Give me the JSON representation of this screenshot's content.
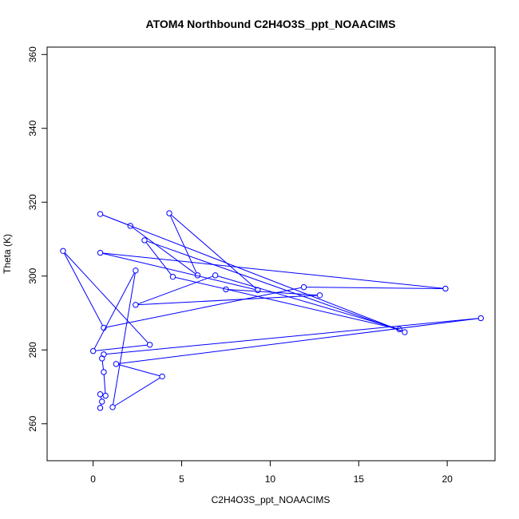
{
  "chart_data": {
    "type": "line",
    "title": "ATOM4 Northbound C2H4O3S_ppt_NOAACIMS",
    "xlabel": "C2H4O3S_ppt_NOAACIMS",
    "ylabel": "Theta (K)",
    "xlim": [
      -2.6,
      22.7
    ],
    "ylim": [
      250,
      362
    ],
    "xticks": [
      0,
      5,
      10,
      15,
      20
    ],
    "yticks": [
      260,
      280,
      300,
      320,
      340,
      360
    ],
    "grid": false,
    "legend": "none",
    "series": [
      {
        "color": "#0000ff",
        "marker": "open-circle",
        "points": [
          [
            0.4,
            264.3
          ],
          [
            0.5,
            266.0
          ],
          [
            0.4,
            268.0
          ],
          [
            0.7,
            267.6
          ],
          [
            0.6,
            274.0
          ],
          [
            0.5,
            277.7
          ],
          [
            0.6,
            278.8
          ],
          [
            21.9,
            288.6
          ],
          [
            1.3,
            276.2
          ],
          [
            3.9,
            272.8
          ],
          [
            1.1,
            264.5
          ],
          [
            2.4,
            301.5
          ],
          [
            0.0,
            279.7
          ],
          [
            3.2,
            281.4
          ],
          [
            -1.7,
            306.8
          ],
          [
            0.6,
            286.0
          ],
          [
            11.9,
            297.0
          ],
          [
            19.9,
            296.6
          ],
          [
            0.4,
            306.3
          ],
          [
            9.3,
            296.2
          ],
          [
            4.3,
            317.0
          ],
          [
            5.9,
            300.2
          ],
          [
            2.1,
            313.6
          ],
          [
            0.4,
            316.8
          ],
          [
            17.6,
            284.8
          ],
          [
            2.9,
            309.7
          ],
          [
            4.5,
            299.8
          ],
          [
            17.3,
            285.6
          ],
          [
            6.9,
            300.2
          ],
          [
            2.4,
            292.2
          ],
          [
            12.8,
            294.8
          ],
          [
            7.5,
            296.4
          ]
        ]
      }
    ]
  }
}
